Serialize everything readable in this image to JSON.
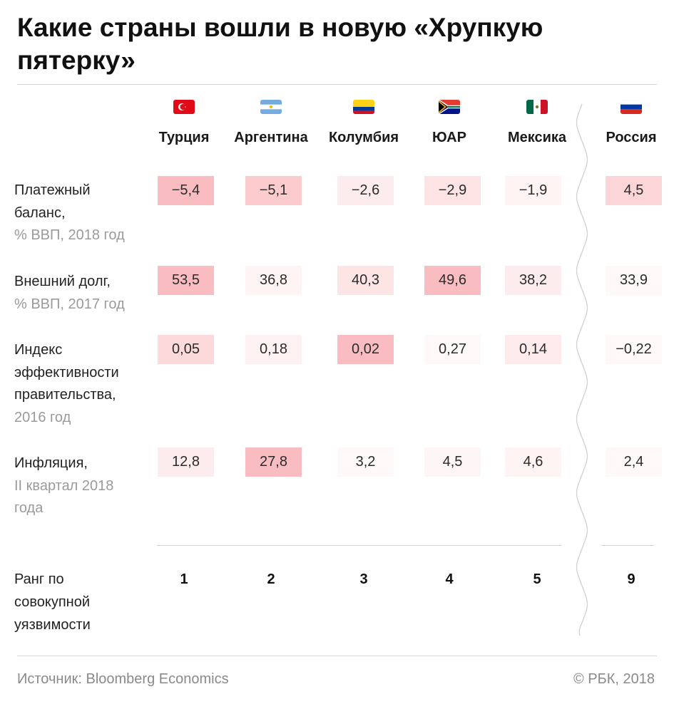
{
  "title": "Какие страны вошли в новую «Хрупкую пятерку»",
  "countries": [
    {
      "name": "Турция",
      "flag": "turkey-flag-icon"
    },
    {
      "name": "Аргентина",
      "flag": "argentina-flag-icon"
    },
    {
      "name": "Колумбия",
      "flag": "colombia-flag-icon"
    },
    {
      "name": "ЮАР",
      "flag": "south-africa-flag-icon"
    },
    {
      "name": "Мексика",
      "flag": "mexico-flag-icon"
    },
    {
      "name": "Россия",
      "flag": "russia-flag-icon"
    }
  ],
  "rows": [
    {
      "label": "Платежный баланс,",
      "sub": "% ВВП, 2018 год",
      "values": [
        "−5,4",
        "−5,1",
        "−2,6",
        "−2,9",
        "−1,9",
        "4,5"
      ],
      "shade": [
        0.7,
        0.55,
        0.2,
        0.3,
        0.12,
        0.45
      ]
    },
    {
      "label": "Внешний долг,",
      "sub": "% ВВП, 2017 год",
      "values": [
        "53,5",
        "36,8",
        "40,3",
        "49,6",
        "38,2",
        "33,9"
      ],
      "shade": [
        0.7,
        0.12,
        0.28,
        0.7,
        0.2,
        0.08
      ]
    },
    {
      "label": "Индекс эффективности правительства,",
      "sub": "2016 год",
      "values": [
        "0,05",
        "0,18",
        "0,02",
        "0,27",
        "0,14",
        "−0,22"
      ],
      "shade": [
        0.4,
        0.15,
        0.7,
        0.08,
        0.22,
        0.08
      ]
    },
    {
      "label": "Инфляция,",
      "sub": "II квартал 2018 года",
      "values": [
        "12,8",
        "27,8",
        "3,2",
        "4,5",
        "4,6",
        "2,4"
      ],
      "shade": [
        0.2,
        0.7,
        0.08,
        0.1,
        0.12,
        0.08
      ]
    }
  ],
  "rank": {
    "label": "Ранг по совокупной уязвимости",
    "values": [
      "1",
      "2",
      "3",
      "4",
      "5",
      "9"
    ]
  },
  "footer": {
    "source": "Источник: Bloomberg Economics",
    "copyright": "© РБК, 2018"
  },
  "colors": {
    "shade_base": "#f7a1a6",
    "text": "#2b2b2b",
    "muted": "#9a9a9a",
    "rule": "#d4d4d4"
  },
  "chart_data": {
    "type": "table",
    "title": "Какие страны вошли в новую «Хрупкую пятерку»",
    "columns": [
      "Турция",
      "Аргентина",
      "Колумбия",
      "ЮАР",
      "Мексика",
      "Россия"
    ],
    "rows": [
      {
        "name": "Платежный баланс, % ВВП, 2018 год",
        "values": [
          -5.4,
          -5.1,
          -2.6,
          -2.9,
          -1.9,
          4.5
        ]
      },
      {
        "name": "Внешний долг, % ВВП, 2017 год",
        "values": [
          53.5,
          36.8,
          40.3,
          49.6,
          38.2,
          33.9
        ]
      },
      {
        "name": "Индекс эффективности правительства, 2016 год",
        "values": [
          0.05,
          0.18,
          0.02,
          0.27,
          0.14,
          -0.22
        ]
      },
      {
        "name": "Инфляция, II квартал 2018 года",
        "values": [
          12.8,
          27.8,
          3.2,
          4.5,
          4.6,
          2.4
        ]
      },
      {
        "name": "Ранг по совокупной уязвимости",
        "values": [
          1,
          2,
          3,
          4,
          5,
          9
        ]
      }
    ]
  }
}
